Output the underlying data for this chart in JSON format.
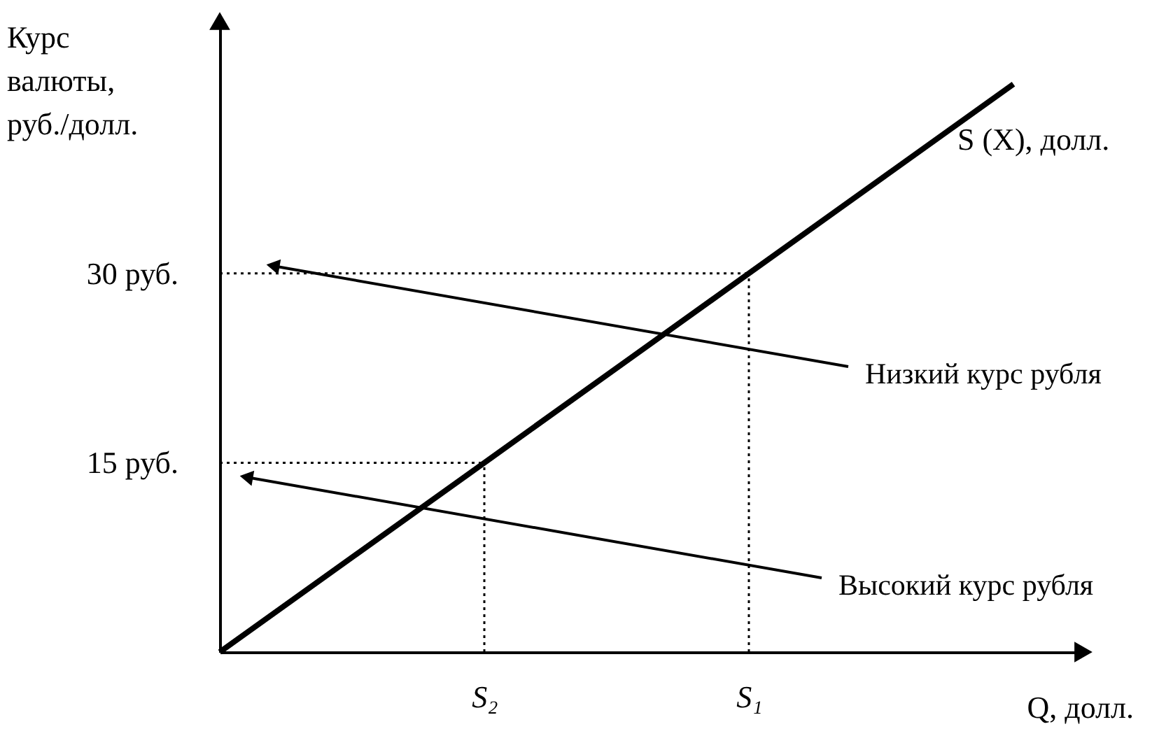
{
  "chart_data": {
    "type": "line",
    "xlabel": "Q, долл.",
    "ylabel": "Курс\nвалюты,\nруб./долл.",
    "categories": [
      null,
      "S₂",
      "S₁",
      null
    ],
    "ylim": [
      0,
      50
    ],
    "yticks": [
      {
        "value": 15,
        "label": "15 руб."
      },
      {
        "value": 30,
        "label": "30 руб."
      }
    ],
    "series": [
      {
        "name": "S (X), долл.",
        "color": "#000000",
        "values": [
          0,
          15,
          30,
          45
        ]
      }
    ],
    "ref_lines": [
      {
        "axis": "y",
        "value": 30,
        "label": null,
        "color": "#000000",
        "line_style": "dotted"
      },
      {
        "axis": "y",
        "value": 15,
        "label": null,
        "color": "#000000",
        "line_style": "dotted"
      },
      {
        "axis": "x",
        "value": "S₁",
        "label": null,
        "color": "#000000",
        "line_style": "dotted"
      },
      {
        "axis": "x",
        "value": "S₂",
        "label": null,
        "color": "#000000",
        "line_style": "dotted"
      }
    ],
    "annotations": [
      "Низкий курс рубля",
      "Высокий курс рубля"
    ],
    "grid": false,
    "line_style": "solid",
    "marker": "none"
  }
}
